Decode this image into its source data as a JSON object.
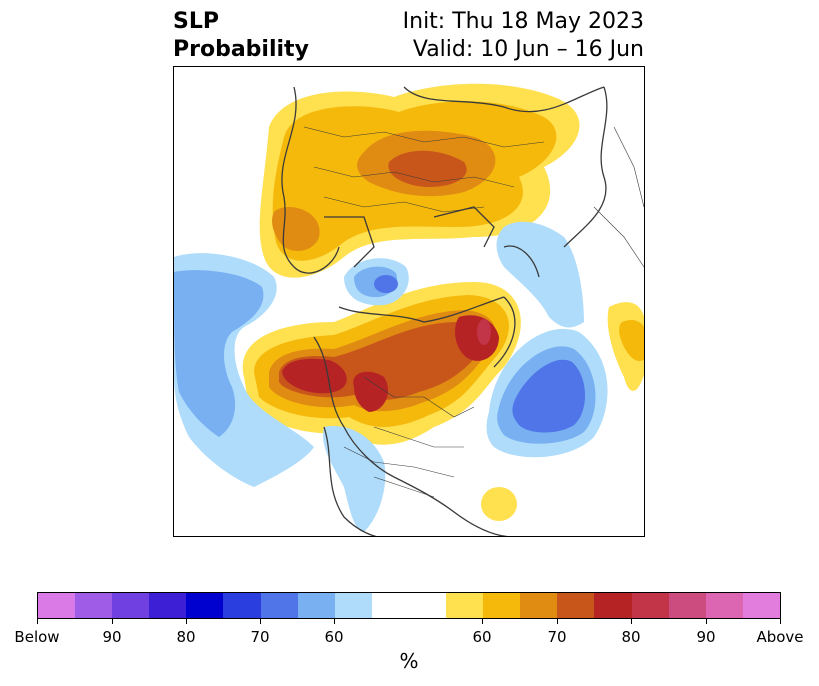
{
  "header": {
    "title_line1": "SLP",
    "title_line2": "Probability",
    "init_text": "Init: Thu 18 May 2023",
    "valid_text": "Valid: 10 Jun – 16 Jun"
  },
  "colorbar": {
    "unit": "%",
    "segments": [
      "#d97ae6",
      "#9f5ce6",
      "#7040e0",
      "#3d1fd6",
      "#0000cf",
      "#2a3edf",
      "#4f75e8",
      "#78b0f2",
      "#aedcfa",
      "#ffffff",
      "#ffffff",
      "#ffe04f",
      "#f5b90c",
      "#e08b12",
      "#c8561a",
      "#b52324",
      "#c23448",
      "#cc4c7f",
      "#dc66b2",
      "#e37ddd"
    ],
    "ticks": [
      {
        "label": "Below"
      },
      {
        "label": "90"
      },
      {
        "label": "80"
      },
      {
        "label": "70"
      },
      {
        "label": "60"
      },
      {
        "label": "60"
      },
      {
        "label": "70"
      },
      {
        "label": "80"
      },
      {
        "label": "90"
      },
      {
        "label": "Above"
      }
    ]
  },
  "colors": {
    "above_60": "#ffe04f",
    "above_65": "#f5b90c",
    "above_70": "#e08b12",
    "above_75": "#c8561a",
    "above_80": "#b52324",
    "above_85": "#c23448",
    "below_60": "#aedcfa",
    "below_65": "#78b0f2",
    "below_70": "#4f75e8",
    "coast": "#3a3a3a"
  }
}
